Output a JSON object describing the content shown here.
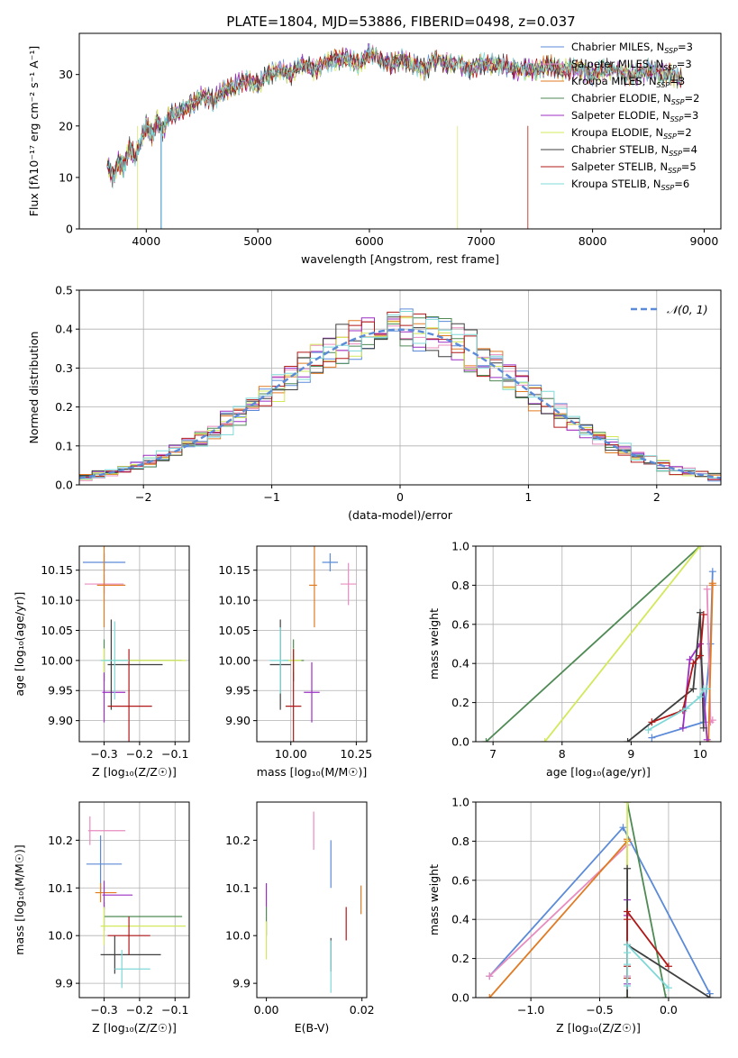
{
  "figure": {
    "title": "PLATE=1804, MJD=53886, FIBERID=0498, z=0.037"
  },
  "models": [
    {
      "name": "Chabrier MILES",
      "nssp": "3",
      "color": "#5b8ad8"
    },
    {
      "name": "Salpeter MILES",
      "nssp": "3",
      "color": "#e88cc0"
    },
    {
      "name": "Kroupa MILES",
      "nssp": "3",
      "color": "#e07b24"
    },
    {
      "name": "Chabrier ELODIE",
      "nssp": "2",
      "color": "#4f8a55"
    },
    {
      "name": "Salpeter ELODIE",
      "nssp": "3",
      "color": "#9b2fc4"
    },
    {
      "name": "Kroupa ELODIE",
      "nssp": "2",
      "color": "#d3e85b"
    },
    {
      "name": "Chabrier STELIB",
      "nssp": "4",
      "color": "#3f3f3f"
    },
    {
      "name": "Salpeter STELIB",
      "nssp": "5",
      "color": "#b01818"
    },
    {
      "name": "Kroupa STELIB",
      "nssp": "6",
      "color": "#7fd8d8"
    }
  ],
  "chart_data": [
    {
      "id": "spectrum",
      "type": "line",
      "xlabel": "wavelength [Angstrom, rest frame]",
      "ylabel": "Flux [fλ10⁻¹⁷ erg cm⁻² s⁻¹ A⁻¹]",
      "xlim": [
        3400,
        9150
      ],
      "ylim": [
        0,
        38
      ],
      "xticks": [
        4000,
        5000,
        6000,
        7000,
        8000,
        9000
      ],
      "yticks": [
        0,
        10,
        20,
        30
      ],
      "grid": false,
      "legend": "upper right",
      "x": [
        3650,
        3700,
        3750,
        3800,
        3850,
        3900,
        3950,
        4000,
        4050,
        4100,
        4150,
        4200,
        4300,
        4400,
        4500,
        4600,
        4700,
        4800,
        4900,
        5000,
        5100,
        5200,
        5300,
        5400,
        5500,
        5600,
        5700,
        5800,
        5900,
        6000,
        6100,
        6200,
        6300,
        6400,
        6500,
        6600,
        6700,
        6800,
        6900,
        7000,
        7100,
        7200,
        7300,
        7400,
        7500,
        7600,
        7700,
        7800,
        7900,
        8000,
        8100,
        8200,
        8300,
        8400,
        8500,
        8600,
        8700,
        8800
      ],
      "y": [
        13,
        10,
        13,
        12,
        16,
        14,
        17,
        20,
        18,
        21,
        19,
        22,
        23,
        24,
        26,
        25,
        27,
        28,
        29,
        28,
        30,
        31,
        30,
        32,
        31,
        32,
        33,
        33,
        32,
        34,
        33,
        32,
        33,
        32,
        31,
        33,
        32,
        32,
        31,
        32,
        32,
        32,
        31,
        31,
        31,
        32,
        31,
        31,
        31,
        30,
        31,
        31,
        30,
        30,
        31,
        30,
        30,
        29
      ],
      "drops": [
        {
          "series": "Chabrier MILES",
          "x": 4130
        },
        {
          "series": "Kroupa MILES",
          "x": 7420
        },
        {
          "series": "Salpeter STELIB",
          "x": 7420
        },
        {
          "series": "Kroupa ELODIE",
          "x": 6790
        },
        {
          "series": "Kroupa ELODIE",
          "x": 3920
        },
        {
          "series": "Kroupa STELIB",
          "x": 4140
        }
      ]
    },
    {
      "id": "residuals",
      "type": "histogram",
      "xlabel": "(data-model)/error",
      "ylabel": "Normed distribution",
      "xlim": [
        -2.5,
        2.5
      ],
      "ylim": [
        0,
        0.5
      ],
      "xticks": [
        -2,
        -1,
        0,
        1,
        2
      ],
      "yticks": [
        0.0,
        0.1,
        0.2,
        0.3,
        0.4,
        0.5
      ],
      "grid": true,
      "legend": "upper right",
      "legend_label": "𝒩(0, 1)",
      "bin_width": 0.1,
      "reference": {
        "name": "N(0,1)",
        "color": "#5b8ad8",
        "style": "dashed"
      }
    },
    {
      "id": "age_vs_Z",
      "type": "errorbar",
      "xlabel": "Z [log₁₀(Z/Z☉)]",
      "ylabel": "age  [log₁₀(age/yr)]",
      "xlim": [
        -0.37,
        -0.06
      ],
      "ylim": [
        9.865,
        10.19
      ],
      "xticks": [
        -0.3,
        -0.2,
        -0.1
      ],
      "yticks": [
        9.9,
        9.95,
        10.0,
        10.05,
        10.1,
        10.15
      ],
      "grid": true,
      "points": [
        {
          "series": "Chabrier MILES",
          "x": -0.3,
          "y": 10.163,
          "xerr": [
            0.06,
            0.06
          ],
          "yerr": 0.015
        },
        {
          "series": "Salpeter MILES",
          "x": -0.3,
          "y": 10.127,
          "xerr": [
            0.055,
            0.055
          ],
          "yerr": 0.016
        },
        {
          "series": "Kroupa MILES",
          "x": -0.3,
          "y": 10.125,
          "xerr": [
            0.02,
            0.06
          ],
          "yerr": 0.07
        },
        {
          "series": "Chabrier ELODIE",
          "x": -0.3,
          "y": 10.0,
          "xerr": [
            0.0,
            0.22
          ],
          "yerr": 0.035
        },
        {
          "series": "Salpeter ELODIE",
          "x": -0.3,
          "y": 9.947,
          "xerr": [
            0.005,
            0.06
          ],
          "yerr": 0.05
        },
        {
          "series": "Kroupa ELODIE",
          "x": -0.3,
          "y": 10.0,
          "xerr": [
            0.01,
            0.23
          ],
          "yerr": 0.02
        },
        {
          "series": "Chabrier STELIB",
          "x": -0.28,
          "y": 9.993,
          "xerr": [
            0.01,
            0.145
          ],
          "yerr": 0.075
        },
        {
          "series": "Salpeter STELIB",
          "x": -0.23,
          "y": 9.924,
          "xerr": [
            0.06,
            0.065
          ],
          "yerr": 0.095
        },
        {
          "series": "Kroupa STELIB",
          "x": -0.27,
          "y": 10.0,
          "xerr": [
            0.04,
            0.04
          ],
          "yerr": 0.065
        }
      ]
    },
    {
      "id": "age_vs_mass",
      "type": "errorbar",
      "xlabel": "mass [log₁₀(M/M☉)]",
      "ylabel": "",
      "xlim": [
        9.87,
        10.29
      ],
      "ylim": [
        9.865,
        10.19
      ],
      "xticks": [
        10.0,
        10.25
      ],
      "yticks": [
        9.9,
        9.95,
        10.0,
        10.05,
        10.1,
        10.15
      ],
      "grid": true,
      "points": [
        {
          "series": "Chabrier MILES",
          "x": 10.15,
          "y": 10.163,
          "xerr": [
            0.03,
            0.03
          ],
          "yerr": 0.015
        },
        {
          "series": "Salpeter MILES",
          "x": 10.22,
          "y": 10.127,
          "xerr": [
            0.03,
            0.03
          ],
          "yerr": 0.035
        },
        {
          "series": "Kroupa MILES",
          "x": 10.09,
          "y": 10.125,
          "xerr": [
            0.02,
            0.01
          ],
          "yerr": 0.07
        },
        {
          "series": "Chabrier ELODIE",
          "x": 10.01,
          "y": 10.0,
          "xerr": [
            0.04,
            0.04
          ],
          "yerr": 0.035
        },
        {
          "series": "Salpeter ELODIE",
          "x": 10.08,
          "y": 9.947,
          "xerr": [
            0.03,
            0.03
          ],
          "yerr": 0.05
        },
        {
          "series": "Kroupa ELODIE",
          "x": 10.01,
          "y": 10.0,
          "xerr": [
            0.02,
            0.03
          ],
          "yerr": 0.02
        },
        {
          "series": "Chabrier STELIB",
          "x": 9.96,
          "y": 9.993,
          "xerr": [
            0.04,
            0.04
          ],
          "yerr": 0.075
        },
        {
          "series": "Salpeter STELIB",
          "x": 10.01,
          "y": 9.924,
          "xerr": [
            0.03,
            0.03
          ],
          "yerr": 0.095
        },
        {
          "series": "Kroupa STELIB",
          "x": 9.96,
          "y": 10.0,
          "xerr": [
            0.04,
            0.03
          ],
          "yerr": 0.055
        }
      ]
    },
    {
      "id": "weight_vs_age",
      "type": "line",
      "xlabel": "age  [log₁₀(age/yr)]",
      "ylabel": "mass weight",
      "xlim": [
        6.75,
        10.3
      ],
      "ylim": [
        0.0,
        1.0
      ],
      "xticks": [
        7,
        8,
        9,
        10
      ],
      "yticks": [
        0.0,
        0.2,
        0.4,
        0.6,
        0.8,
        1.0
      ],
      "grid": true,
      "series": [
        {
          "name": "Chabrier MILES",
          "x": [
            9.3,
            10.05,
            10.15,
            10.18
          ],
          "y": [
            0.02,
            0.1,
            0.5,
            0.87
          ]
        },
        {
          "name": "Salpeter MILES",
          "x": [
            10.1,
            10.15,
            10.18
          ],
          "y": [
            0.78,
            0.1,
            0.11
          ]
        },
        {
          "name": "Kroupa MILES",
          "x": [
            10.12,
            10.18,
            10.18
          ],
          "y": [
            0.0,
            0.8,
            0.81
          ]
        },
        {
          "name": "Chabrier ELODIE",
          "x": [
            6.9,
            10.0
          ],
          "y": [
            0.0,
            1.0
          ]
        },
        {
          "name": "Salpeter ELODIE",
          "x": [
            9.75,
            9.85,
            10.0,
            10.1
          ],
          "y": [
            0.07,
            0.42,
            0.5,
            0.01
          ]
        },
        {
          "name": "Kroupa ELODIE",
          "x": [
            7.75,
            10.0
          ],
          "y": [
            0.0,
            1.0
          ]
        },
        {
          "name": "Chabrier STELIB",
          "x": [
            8.95,
            9.9,
            10.0,
            10.05
          ],
          "y": [
            0.0,
            0.27,
            0.66,
            0.07
          ]
        },
        {
          "name": "Salpeter STELIB",
          "x": [
            9.3,
            9.75,
            9.9,
            10.0,
            10.05
          ],
          "y": [
            0.1,
            0.16,
            0.4,
            0.44,
            0.65
          ]
        },
        {
          "name": "Kroupa STELIB",
          "x": [
            9.25,
            9.8,
            10.0,
            10.05,
            10.1
          ],
          "y": [
            0.06,
            0.17,
            0.23,
            0.27,
            0.27
          ]
        }
      ]
    },
    {
      "id": "mass_vs_Z",
      "type": "errorbar",
      "xlabel": "Z [log₁₀(Z/Z☉)]",
      "ylabel": "mass [log₁₀(M/M☉)]",
      "xlim": [
        -0.37,
        -0.06
      ],
      "ylim": [
        9.87,
        10.28
      ],
      "xticks": [
        -0.3,
        -0.2,
        -0.1
      ],
      "yticks": [
        9.9,
        10.0,
        10.1,
        10.2
      ],
      "grid": true,
      "points": [
        {
          "series": "Chabrier MILES",
          "x": -0.31,
          "y": 10.15,
          "xerr": [
            0.04,
            0.06
          ],
          "yerr": 0.06
        },
        {
          "series": "Salpeter MILES",
          "x": -0.34,
          "y": 10.22,
          "xerr": [
            0.005,
            0.1
          ],
          "yerr": 0.03
        },
        {
          "series": "Kroupa MILES",
          "x": -0.31,
          "y": 10.09,
          "xerr": [
            0.015,
            0.045
          ],
          "yerr": 0.02
        },
        {
          "series": "Chabrier ELODIE",
          "x": -0.3,
          "y": 10.04,
          "xerr": [
            0.0,
            0.22
          ],
          "yerr": 0.03
        },
        {
          "series": "Salpeter ELODIE",
          "x": -0.3,
          "y": 10.085,
          "xerr": [
            0.005,
            0.08
          ],
          "yerr": 0.03
        },
        {
          "series": "Kroupa ELODIE",
          "x": -0.3,
          "y": 10.02,
          "xerr": [
            0.01,
            0.23
          ],
          "yerr": 0.04
        },
        {
          "series": "Chabrier STELIB",
          "x": -0.27,
          "y": 9.96,
          "xerr": [
            0.04,
            0.13
          ],
          "yerr": 0.04
        },
        {
          "series": "Salpeter STELIB",
          "x": -0.23,
          "y": 10.0,
          "xerr": [
            0.06,
            0.06
          ],
          "yerr": 0.04
        },
        {
          "series": "Kroupa STELIB",
          "x": -0.25,
          "y": 9.93,
          "xerr": [
            0.02,
            0.08
          ],
          "yerr": 0.04
        }
      ]
    },
    {
      "id": "mass_vs_ebv",
      "type": "errorbar",
      "xlabel": "E(B-V)",
      "ylabel": "",
      "xlim": [
        -0.002,
        0.021
      ],
      "ylim": [
        9.87,
        10.28
      ],
      "xticks": [
        0.0,
        0.02
      ],
      "yticks": [
        9.9,
        10.0,
        10.1,
        10.2
      ],
      "grid": false,
      "points": [
        {
          "series": "Chabrier MILES",
          "x": 0.0135,
          "y": 10.15,
          "xerr": [
            0,
            0
          ],
          "yerr": 0.05
        },
        {
          "series": "Salpeter MILES",
          "x": 0.0099,
          "y": 10.22,
          "xerr": [
            0,
            0
          ],
          "yerr": 0.04
        },
        {
          "series": "Kroupa MILES",
          "x": 0.0198,
          "y": 10.075,
          "xerr": [
            0,
            0
          ],
          "yerr": 0.03
        },
        {
          "series": "Chabrier ELODIE",
          "x": 0.0,
          "y": 10.03,
          "xerr": [
            0,
            0
          ],
          "yerr": 0.03
        },
        {
          "series": "Salpeter ELODIE",
          "x": 0.0,
          "y": 10.085,
          "xerr": [
            0,
            0
          ],
          "yerr": 0.025
        },
        {
          "series": "Kroupa ELODIE",
          "x": 0.0,
          "y": 9.99,
          "xerr": [
            0,
            0
          ],
          "yerr": 0.04
        },
        {
          "series": "Chabrier STELIB",
          "x": 0.0135,
          "y": 9.96,
          "xerr": [
            0,
            0
          ],
          "yerr": 0.035
        },
        {
          "series": "Salpeter STELIB",
          "x": 0.0167,
          "y": 10.025,
          "xerr": [
            0,
            0
          ],
          "yerr": 0.035
        },
        {
          "series": "Kroupa STELIB",
          "x": 0.0135,
          "y": 9.935,
          "xerr": [
            0,
            0
          ],
          "yerr": 0.055
        }
      ]
    },
    {
      "id": "weight_vs_Z",
      "type": "line",
      "xlabel": "Z [log₁₀(Z/Z☉)]",
      "ylabel": "mass weight",
      "xlim": [
        -1.4,
        0.38
      ],
      "ylim": [
        0.0,
        1.0
      ],
      "xticks": [
        -1.0,
        -0.5,
        0.0
      ],
      "yticks": [
        0.0,
        0.2,
        0.4,
        0.6,
        0.8,
        1.0
      ],
      "grid": true,
      "series": [
        {
          "name": "Chabrier MILES",
          "x": [
            -1.3,
            -0.33,
            0.3
          ],
          "y": [
            0.11,
            0.87,
            0.02
          ]
        },
        {
          "name": "Salpeter MILES",
          "x": [
            -1.3,
            -0.3,
            -0.3
          ],
          "y": [
            0.11,
            0.78,
            0.11
          ]
        },
        {
          "name": "Kroupa MILES",
          "x": [
            -1.3,
            -0.3,
            -0.3
          ],
          "y": [
            0.0,
            0.8,
            0.81
          ]
        },
        {
          "name": "Chabrier ELODIE",
          "x": [
            -0.3,
            -0.02
          ],
          "y": [
            1.0,
            0.0
          ]
        },
        {
          "name": "Salpeter ELODIE",
          "x": [
            -0.3,
            -0.3,
            -0.3
          ],
          "y": [
            0.07,
            0.42,
            0.5
          ]
        },
        {
          "name": "Kroupa ELODIE",
          "x": [
            -0.3,
            -0.3
          ],
          "y": [
            0.0,
            1.0
          ]
        },
        {
          "name": "Chabrier STELIB",
          "x": [
            -0.3,
            -0.3,
            -0.3,
            0.3
          ],
          "y": [
            0.0,
            0.66,
            0.27,
            0.0
          ]
        },
        {
          "name": "Salpeter STELIB",
          "x": [
            -0.3,
            -0.3,
            -0.3,
            -0.3,
            0.0
          ],
          "y": [
            0.1,
            0.16,
            0.4,
            0.44,
            0.16
          ]
        },
        {
          "name": "Kroupa STELIB",
          "x": [
            -0.3,
            -0.3,
            -0.3,
            -0.3,
            0.0
          ],
          "y": [
            0.06,
            0.17,
            0.23,
            0.27,
            0.05
          ]
        }
      ]
    }
  ]
}
